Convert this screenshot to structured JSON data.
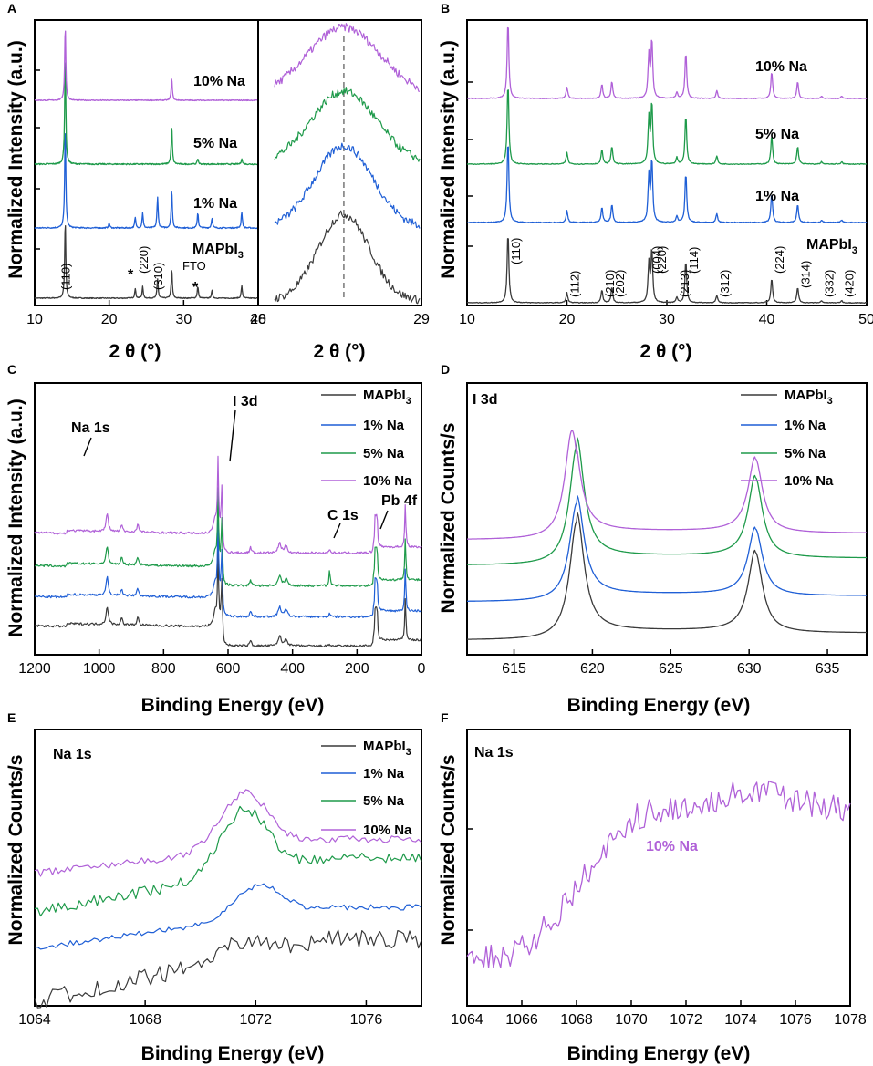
{
  "colors": {
    "MAPbI3": "#3a3a3a",
    "1% Na": "#1f5fd6",
    "5% Na": "#1e9a4a",
    "10% Na": "#b061d8"
  },
  "chart_data": [
    {
      "panel": "A",
      "type": "line",
      "xlabel": "2 θ (°)",
      "ylabel": "Normalized Intensity (a.u.)",
      "xlim": [
        10,
        40
      ],
      "xticks": [
        "10",
        "20",
        "30",
        "40"
      ],
      "series": [
        {
          "name": "MAPbI3",
          "label": "MAPbI",
          "sub": "3",
          "peaks": [
            [
              14.1,
              1.0
            ],
            [
              23.5,
              0.12
            ],
            [
              24.5,
              0.15
            ],
            [
              26.5,
              0.25
            ],
            [
              28.4,
              0.38
            ],
            [
              31.9,
              0.15
            ],
            [
              33.8,
              0.1
            ],
            [
              37.8,
              0.16
            ]
          ]
        },
        {
          "name": "1% Na",
          "label": "1% Na",
          "peaks": [
            [
              14.1,
              1.0
            ],
            [
              20.0,
              0.05
            ],
            [
              23.5,
              0.1
            ],
            [
              24.5,
              0.15
            ],
            [
              26.5,
              0.3
            ],
            [
              28.4,
              0.38
            ],
            [
              31.9,
              0.15
            ],
            [
              33.8,
              0.1
            ],
            [
              37.8,
              0.16
            ]
          ]
        },
        {
          "name": "5% Na",
          "label": "5% Na",
          "peaks": [
            [
              14.1,
              1.0
            ],
            [
              28.4,
              0.35
            ],
            [
              31.9,
              0.05
            ],
            [
              37.8,
              0.05
            ]
          ]
        },
        {
          "name": "10% Na",
          "label": "10% Na",
          "peaks": [
            [
              14.1,
              1.0
            ],
            [
              28.4,
              0.3
            ]
          ]
        }
      ],
      "annotations": [
        "(110)",
        "(220)",
        "(310)",
        "*",
        "*",
        "FTO"
      ]
    },
    {
      "panel": "A-inset",
      "type": "line",
      "xlabel": "2 θ (°)",
      "xlim": [
        28,
        29
      ],
      "xticks": [
        "28",
        "29"
      ],
      "center": 28.5
    },
    {
      "panel": "B",
      "type": "line",
      "xlabel": "2 θ (°)",
      "ylabel": "Normalized Intensity (a.u.)",
      "xlim": [
        10,
        50
      ],
      "xticks": [
        "10",
        "20",
        "30",
        "40",
        "50"
      ],
      "peaks": [
        [
          14.1,
          1.0
        ],
        [
          20.0,
          0.14
        ],
        [
          23.5,
          0.18
        ],
        [
          24.5,
          0.22
        ],
        [
          28.2,
          0.55
        ],
        [
          28.5,
          0.75
        ],
        [
          31.0,
          0.08
        ],
        [
          31.9,
          0.6
        ],
        [
          35.0,
          0.1
        ],
        [
          40.5,
          0.35
        ],
        [
          43.1,
          0.22
        ],
        [
          45.5,
          0.03
        ],
        [
          47.5,
          0.03
        ]
      ],
      "series_labels": [
        "MAPbI3",
        "1%  Na",
        "5%  Na",
        "10% Na"
      ],
      "hkl": [
        "(110)",
        "(112)",
        "(210)",
        "(202)",
        "(004)",
        "(220)",
        "(213)",
        "(114)",
        "(312)",
        "(224)",
        "(314)",
        "(332)",
        "(420)"
      ]
    },
    {
      "panel": "C",
      "type": "line",
      "xlabel": "Binding Energy (eV)",
      "ylabel": "Normalized Intensity (a.u.)",
      "xlim": [
        1200,
        0
      ],
      "xticks": [
        "1200",
        "1000",
        "800",
        "600",
        "400",
        "200",
        "0"
      ],
      "legend": [
        "MAPbI3",
        "1% Na",
        "5% Na",
        "10% Na"
      ],
      "annotations": [
        "Na 1s",
        "I 3d",
        "C 1s",
        "Pb 4f"
      ]
    },
    {
      "panel": "D",
      "type": "line",
      "title": "I 3d",
      "xlabel": "Binding Energy (eV)",
      "ylabel": "Normalized Counts/s",
      "xlim": [
        612,
        637.5
      ],
      "xticks": [
        "615",
        "620",
        "625",
        "630",
        "635"
      ],
      "peaks": [
        619.0,
        630.4
      ],
      "legend": [
        "MAPbI3",
        "1% Na",
        "5% Na",
        "10% Na"
      ]
    },
    {
      "panel": "E",
      "type": "line",
      "title": "Na 1s",
      "xlabel": "Binding Energy (eV)",
      "ylabel": "Normalized Counts/s",
      "xlim": [
        1064,
        1078
      ],
      "xticks": [
        "1064",
        "1068",
        "1072",
        "1076"
      ],
      "peak": 1071.6,
      "legend": [
        "MAPbI3",
        "1% Na",
        "5% Na",
        "10% Na"
      ]
    },
    {
      "panel": "F",
      "type": "line",
      "title": "Na 1s",
      "xlabel": "Binding Energy (eV)",
      "ylabel": "Normalized Counts/s",
      "xlim": [
        1064,
        1078
      ],
      "xticks": [
        "1064",
        "1066",
        "1068",
        "1070",
        "1072",
        "1074",
        "1076",
        "1078"
      ],
      "series_label": "10% Na"
    }
  ],
  "text": {
    "panelA": "A",
    "panelB": "B",
    "panelC": "C",
    "panelD": "D",
    "panelE": "E",
    "panelF": "F",
    "ylabel_xrd": "Normalized Intensity (a.u.)",
    "ylabel_xps": "Normalized Intensity (a.u.)",
    "ylabel_counts": "Normalized Counts/s",
    "xlabel_xrd": "2 θ (°)",
    "xlabel_be": "Binding Energy (eV)",
    "mapbi": "MAPbI",
    "sub3": "3",
    "na10": "10% Na",
    "na5": "5% Na",
    "na1": "1% Na",
    "na10b": "10% Na",
    "na5b": "5%  Na",
    "na1b": "1%  Na",
    "fto": "FTO",
    "star": "*",
    "i3d": "I 3d",
    "na1s": "Na 1s",
    "c1s": "C 1s",
    "pb4f": "Pb 4f"
  }
}
